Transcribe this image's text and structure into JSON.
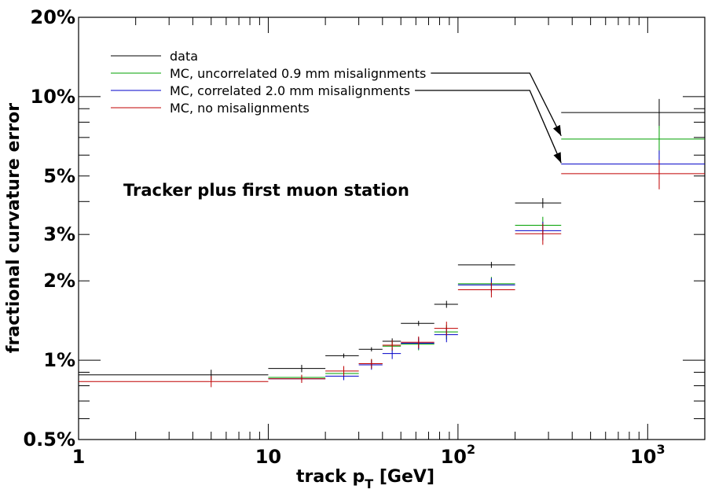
{
  "chart_data": {
    "type": "scatter",
    "x_scale": "log",
    "y_scale": "log",
    "xlim": [
      1,
      2000
    ],
    "ylim": [
      0.005,
      0.2
    ],
    "xlabel": "track p",
    "xlabel_subscript": "T",
    "xlabel_suffix": " [GeV]",
    "ylabel": "fractional curvature error",
    "x_ticks": [
      {
        "value": 1,
        "label": "1"
      },
      {
        "value": 10,
        "label": "10"
      },
      {
        "value": 100,
        "label": "10",
        "sup": "2"
      },
      {
        "value": 1000,
        "label": "10",
        "sup": "3"
      }
    ],
    "y_ticks": [
      {
        "value": 0.005,
        "label": "0.5%"
      },
      {
        "value": 0.01,
        "label": "1%"
      },
      {
        "value": 0.02,
        "label": "2%"
      },
      {
        "value": 0.03,
        "label": "3%"
      },
      {
        "value": 0.05,
        "label": "5%"
      },
      {
        "value": 0.1,
        "label": "10%"
      },
      {
        "value": 0.2,
        "label": "20%"
      }
    ],
    "annotation": "Tracker plus first muon station",
    "legend_position": "top-left",
    "grid": false,
    "series": [
      {
        "name": "data",
        "color": "#000000",
        "points": [
          {
            "x0": 1,
            "x1": 10,
            "xc": 5.0,
            "y": 0.0088,
            "err": 0.0004
          },
          {
            "x0": 10,
            "x1": 20,
            "xc": 15.0,
            "y": 0.0093,
            "err": 0.0003
          },
          {
            "x0": 20,
            "x1": 30,
            "xc": 25.0,
            "y": 0.0104,
            "err": 0.0002
          },
          {
            "x0": 30,
            "x1": 40,
            "xc": 35.0,
            "y": 0.011,
            "err": 0.0002
          },
          {
            "x0": 40,
            "x1": 50,
            "xc": 45.0,
            "y": 0.0118,
            "err": 0.0003
          },
          {
            "x0": 50,
            "x1": 75,
            "xc": 62.0,
            "y": 0.0138,
            "err": 0.0003
          },
          {
            "x0": 75,
            "x1": 100,
            "xc": 87.0,
            "y": 0.0163,
            "err": 0.0005
          },
          {
            "x0": 100,
            "x1": 200,
            "xc": 150.0,
            "y": 0.023,
            "err": 0.0006
          },
          {
            "x0": 200,
            "x1": 350,
            "xc": 280.0,
            "y": 0.0395,
            "err": 0.0017
          },
          {
            "x0": 350,
            "x1": 2000,
            "xc": 1150.0,
            "y": 0.087,
            "err": 0.011
          }
        ]
      },
      {
        "name": "MC, uncorrelated 0.9 mm misalignments",
        "color": "#00a000",
        "points": [
          {
            "x0": 10,
            "x1": 20,
            "xc": 15.0,
            "y": 0.0086,
            "err": 0.0002
          },
          {
            "x0": 20,
            "x1": 30,
            "xc": 25.0,
            "y": 0.0089,
            "err": 0.0003
          },
          {
            "x0": 30,
            "x1": 40,
            "xc": 35.0,
            "y": 0.0097,
            "err": 0.0004
          },
          {
            "x0": 40,
            "x1": 50,
            "xc": 45.0,
            "y": 0.0113,
            "err": 0.0005
          },
          {
            "x0": 50,
            "x1": 75,
            "xc": 62.0,
            "y": 0.0115,
            "err": 0.0006
          },
          {
            "x0": 75,
            "x1": 100,
            "xc": 87.0,
            "y": 0.0128,
            "err": 0.0008
          },
          {
            "x0": 100,
            "x1": 200,
            "xc": 150.0,
            "y": 0.0195,
            "err": 0.0012
          },
          {
            "x0": 200,
            "x1": 350,
            "xc": 280.0,
            "y": 0.0325,
            "err": 0.0025
          },
          {
            "x0": 350,
            "x1": 2000,
            "xc": 1150.0,
            "y": 0.069,
            "err": 0.0085
          }
        ]
      },
      {
        "name": "MC, correlated 2.0 mm misalignments",
        "color": "#0000c8",
        "points": [
          {
            "x0": 10,
            "x1": 20,
            "xc": 15.0,
            "y": 0.0085,
            "err": 0.0002
          },
          {
            "x0": 20,
            "x1": 30,
            "xc": 25.0,
            "y": 0.0087,
            "err": 0.0003
          },
          {
            "x0": 30,
            "x1": 40,
            "xc": 35.0,
            "y": 0.0096,
            "err": 0.0004
          },
          {
            "x0": 40,
            "x1": 50,
            "xc": 45.0,
            "y": 0.0106,
            "err": 0.0005
          },
          {
            "x0": 50,
            "x1": 75,
            "xc": 62.0,
            "y": 0.0116,
            "err": 0.0006
          },
          {
            "x0": 75,
            "x1": 100,
            "xc": 87.0,
            "y": 0.0125,
            "err": 0.0008
          },
          {
            "x0": 100,
            "x1": 200,
            "xc": 150.0,
            "y": 0.0193,
            "err": 0.0012
          },
          {
            "x0": 200,
            "x1": 350,
            "xc": 280.0,
            "y": 0.031,
            "err": 0.0025
          },
          {
            "x0": 350,
            "x1": 2000,
            "xc": 1150.0,
            "y": 0.0555,
            "err": 0.007
          }
        ]
      },
      {
        "name": "MC, no misalignments",
        "color": "#c00000",
        "points": [
          {
            "x0": 1,
            "x1": 10,
            "xc": 5.0,
            "y": 0.0083,
            "err": 0.0004
          },
          {
            "x0": 10,
            "x1": 20,
            "xc": 15.0,
            "y": 0.0085,
            "err": 0.0003
          },
          {
            "x0": 20,
            "x1": 30,
            "xc": 25.0,
            "y": 0.0091,
            "err": 0.0004
          },
          {
            "x0": 30,
            "x1": 40,
            "xc": 35.0,
            "y": 0.0097,
            "err": 0.0004
          },
          {
            "x0": 40,
            "x1": 50,
            "xc": 45.0,
            "y": 0.0114,
            "err": 0.0005
          },
          {
            "x0": 50,
            "x1": 75,
            "xc": 62.0,
            "y": 0.0117,
            "err": 0.0006
          },
          {
            "x0": 75,
            "x1": 100,
            "xc": 87.0,
            "y": 0.0132,
            "err": 0.0008
          },
          {
            "x0": 100,
            "x1": 200,
            "xc": 150.0,
            "y": 0.0185,
            "err": 0.0012
          },
          {
            "x0": 200,
            "x1": 350,
            "xc": 280.0,
            "y": 0.0302,
            "err": 0.0028
          },
          {
            "x0": 350,
            "x1": 2000,
            "xc": 1150.0,
            "y": 0.051,
            "err": 0.0065
          }
        ]
      }
    ],
    "arrows": [
      {
        "series": "MC, uncorrelated 0.9 mm misalignments",
        "to_x": 350,
        "to_y": 0.071
      },
      {
        "series": "MC, correlated 2.0 mm misalignments",
        "to_x": 350,
        "to_y": 0.056
      }
    ]
  }
}
